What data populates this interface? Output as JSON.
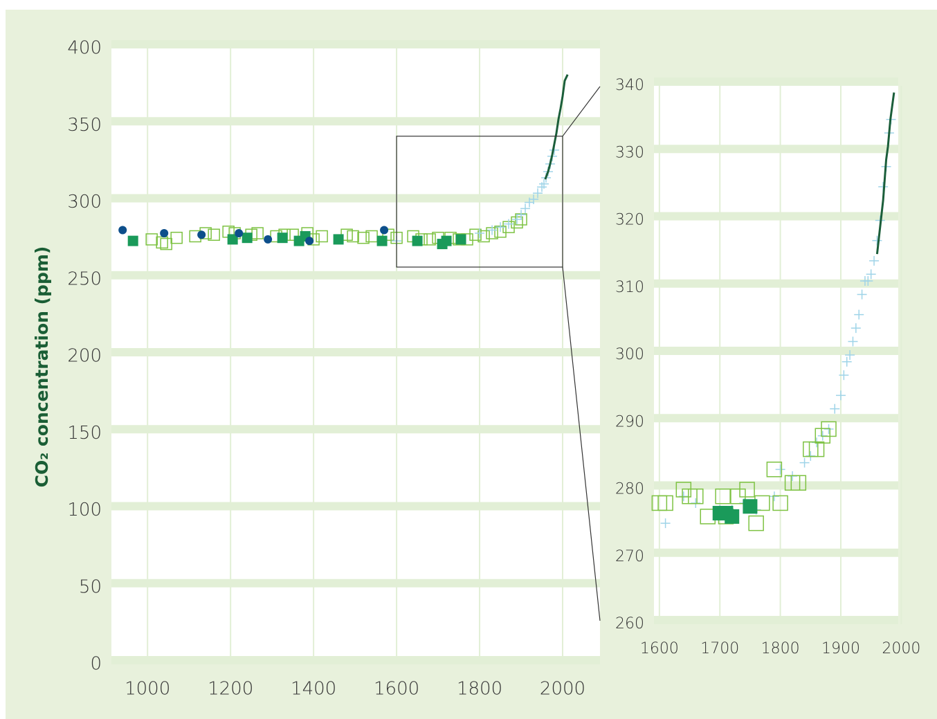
{
  "chart_data": [
    {
      "type": "scatter",
      "ylabel": "CO₂ concentration (ppm)",
      "xlim": [
        913,
        2090
      ],
      "ylim": [
        0,
        400
      ],
      "xticks": [
        1000,
        1200,
        1400,
        1600,
        1800,
        2000
      ],
      "yticks": [
        0,
        50,
        100,
        150,
        200,
        250,
        300,
        350,
        400
      ],
      "grid": true,
      "zoom_box": {
        "x": [
          1600,
          2000
        ],
        "y": [
          258,
          343
        ]
      },
      "series": [
        {
          "marker": "square-open",
          "color": "#7dc242",
          "x": [
            1010,
            1035,
            1045,
            1070,
            1115,
            1140,
            1160,
            1195,
            1210,
            1250,
            1265,
            1310,
            1330,
            1350,
            1385,
            1400,
            1420,
            1480,
            1495,
            1520,
            1540,
            1580,
            1600,
            1640,
            1660,
            1680,
            1700,
            1730,
            1750,
            1770,
            1790,
            1810,
            1830,
            1850,
            1870,
            1890,
            1900
          ],
          "values": [
            276,
            274,
            273,
            277,
            278,
            280,
            279,
            281,
            280,
            279,
            280,
            278,
            279,
            279,
            280,
            276,
            278,
            279,
            278,
            277,
            278,
            279,
            277,
            278,
            276,
            276,
            277,
            277,
            276,
            276,
            279,
            278,
            280,
            281,
            284,
            287,
            289
          ]
        },
        {
          "marker": "cross",
          "color": "#9fd4e8",
          "x": [
            1600,
            1800,
            1830,
            1850,
            1870,
            1890,
            1900,
            1910,
            1920,
            1930,
            1940,
            1950,
            1955,
            1960,
            1965,
            1970,
            1975,
            1980
          ],
          "values": [
            275,
            280,
            282,
            284,
            286,
            289,
            292,
            296,
            300,
            302,
            306,
            310,
            312,
            316,
            320,
            325,
            330,
            334
          ]
        },
        {
          "marker": "square",
          "color": "#1a9a5a",
          "x": [
            965,
            1205,
            1240,
            1325,
            1365,
            1380,
            1460,
            1565,
            1650,
            1710,
            1720,
            1755
          ],
          "values": [
            275,
            276,
            277,
            277,
            275,
            278,
            276,
            275,
            275,
            273,
            275,
            276
          ]
        },
        {
          "marker": "dot",
          "color": "#0d4f8b",
          "x": [
            940,
            1040,
            1130,
            1220,
            1290,
            1390,
            1570
          ],
          "values": [
            282,
            280,
            279,
            280,
            276,
            275,
            282
          ]
        },
        {
          "marker": "line",
          "color": "#1b5e3a",
          "x": [
            1958,
            1965,
            1970,
            1975,
            1980,
            1985,
            1990,
            1995,
            2000,
            2005,
            2012
          ],
          "values": [
            315,
            320,
            325,
            331,
            338,
            345,
            354,
            361,
            369,
            379,
            383
          ]
        }
      ]
    },
    {
      "type": "scatter",
      "xlim": [
        1591,
        1995
      ],
      "ylim": [
        260,
        340
      ],
      "xticks": [
        1600,
        1700,
        1800,
        1900,
        2000
      ],
      "yticks": [
        260,
        270,
        280,
        290,
        300,
        310,
        320,
        330,
        340
      ],
      "grid": true,
      "series": [
        {
          "marker": "cross",
          "color": "#9fd4e8",
          "x": [
            1610,
            1640,
            1660,
            1700,
            1720,
            1740,
            1760,
            1790,
            1800,
            1820,
            1840,
            1850,
            1860,
            1870,
            1880,
            1890,
            1900,
            1905,
            1910,
            1915,
            1920,
            1925,
            1930,
            1935,
            1940,
            1945,
            1950,
            1955,
            1960,
            1965,
            1970,
            1975,
            1980,
            1983
          ],
          "values": [
            275,
            279,
            278,
            277,
            277,
            278,
            277,
            279,
            283,
            282,
            284,
            285,
            287,
            288,
            289,
            292,
            294,
            297,
            299,
            300,
            302,
            304,
            306,
            309,
            311,
            311,
            312,
            314,
            317,
            320,
            325,
            328,
            333,
            335
          ]
        },
        {
          "marker": "square-open",
          "color": "#7dc242",
          "x": [
            1600,
            1610,
            1640,
            1650,
            1660,
            1680,
            1705,
            1710,
            1730,
            1745,
            1760,
            1770,
            1790,
            1800,
            1820,
            1830,
            1850,
            1860,
            1870,
            1880
          ],
          "values": [
            278,
            278,
            280,
            279,
            279,
            276,
            279,
            276,
            279,
            280,
            275,
            278,
            283,
            278,
            281,
            281,
            286,
            286,
            288,
            289
          ]
        },
        {
          "marker": "square",
          "color": "#1a9a5a",
          "x": [
            1700,
            1710,
            1720,
            1750
          ],
          "values": [
            276.5,
            276.5,
            276,
            277.5
          ]
        },
        {
          "marker": "line",
          "color": "#1b5e3a",
          "x": [
            1960,
            1965,
            1970,
            1975,
            1978,
            1982,
            1985,
            1988
          ],
          "values": [
            315,
            319,
            323,
            329,
            331,
            335,
            337,
            339
          ]
        }
      ]
    }
  ]
}
